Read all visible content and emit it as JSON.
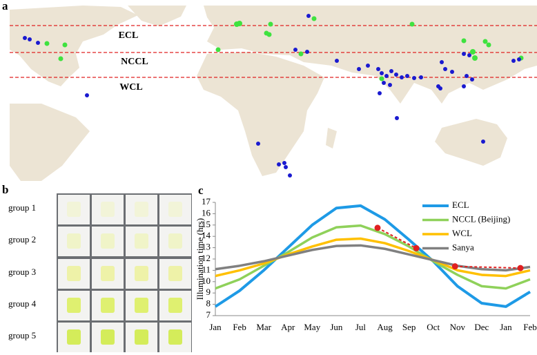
{
  "panels": {
    "a": "a",
    "b": "b",
    "c": "c"
  },
  "map": {
    "bands": [
      "ECL",
      "NCCL",
      "WCL"
    ]
  },
  "photos": {
    "groups": [
      "group 1",
      "group 2",
      "group 3",
      "group 4",
      "group 5"
    ]
  },
  "chart_data": {
    "type": "line",
    "y_label": "Illumination time (hrs)",
    "categories": [
      "Jan",
      "Feb",
      "Mar",
      "Apr",
      "May",
      "Jun",
      "Jul",
      "Aug",
      "Sep",
      "Oct",
      "Nov",
      "Dec",
      "Jan",
      "Feb"
    ],
    "series": [
      {
        "name": "ECL",
        "color": "#1e9ae6",
        "values": [
          7.8,
          9.2,
          11.0,
          13.0,
          15.0,
          16.5,
          16.7,
          15.5,
          13.7,
          11.8,
          9.6,
          8.1,
          7.8,
          9.1
        ]
      },
      {
        "name": "NCCL (Beijing)",
        "color": "#8fd15a",
        "values": [
          9.4,
          10.2,
          11.4,
          12.6,
          13.9,
          14.8,
          14.95,
          14.2,
          13.1,
          11.8,
          10.6,
          9.6,
          9.4,
          10.2
        ]
      },
      {
        "name": "WCL",
        "color": "#ffc000",
        "values": [
          10.5,
          11.0,
          11.6,
          12.4,
          13.1,
          13.7,
          13.8,
          13.4,
          12.7,
          11.9,
          11.0,
          10.6,
          10.5,
          11.0
        ]
      },
      {
        "name": "Sanya",
        "color": "#808080",
        "values": [
          11.1,
          11.4,
          11.8,
          12.3,
          12.8,
          13.15,
          13.2,
          12.9,
          12.4,
          11.9,
          11.4,
          11.1,
          11.0,
          11.3
        ]
      }
    ],
    "annotations": {
      "color": "#e02020",
      "segments": [
        {
          "x": [
            6.7,
            8.3
          ],
          "y": [
            14.75,
            12.95
          ]
        },
        {
          "x": [
            9.9,
            12.6
          ],
          "y": [
            11.35,
            11.2
          ]
        }
      ]
    },
    "ylim": [
      7,
      17
    ],
    "yticks": [
      7,
      8,
      9,
      10,
      11,
      12,
      13,
      14,
      15,
      16,
      17
    ]
  }
}
